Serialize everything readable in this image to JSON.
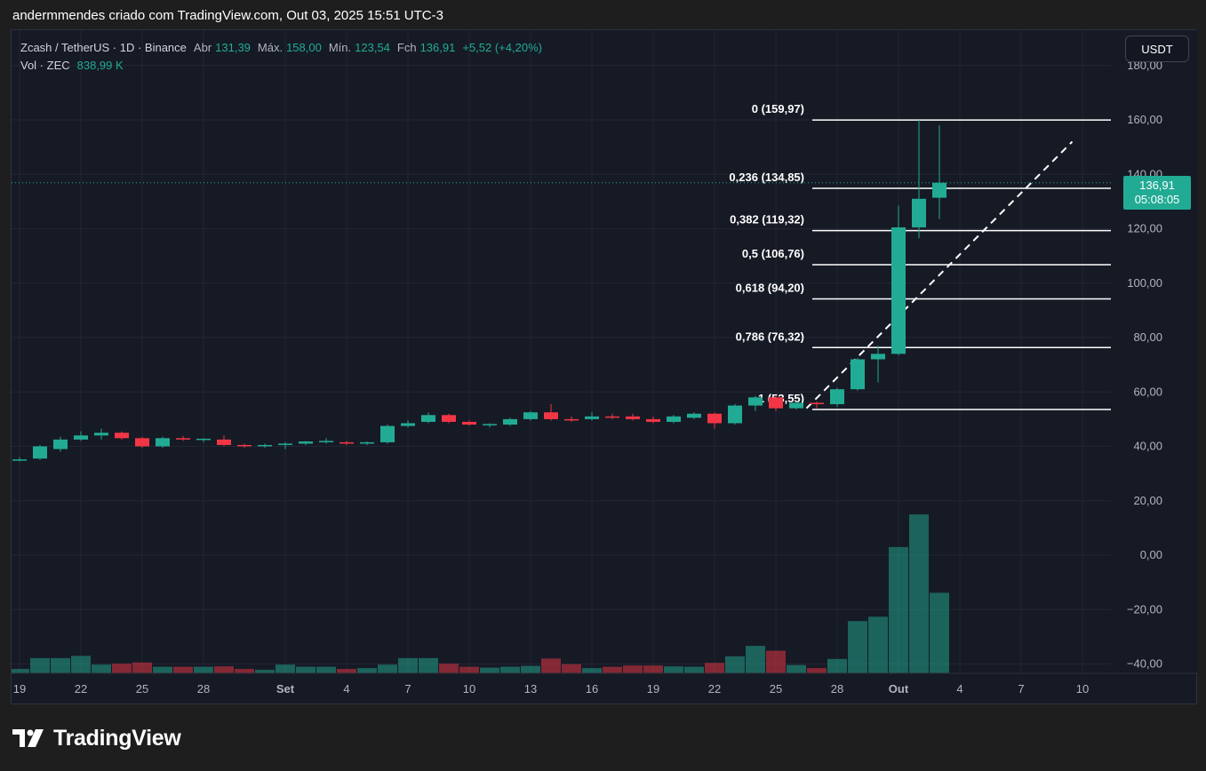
{
  "header": {
    "snapshot_text": "andermmendes criado com TradingView.com, Out 03, 2025 15:51 UTC-3"
  },
  "legend": {
    "symbol": "Zcash / TetherUS · 1D · Binance",
    "open_label": "Abr",
    "open": "131,39",
    "high_label": "Máx.",
    "high": "158,00",
    "low_label": "Mín.",
    "low": "123,54",
    "close_label": "Fch",
    "close": "136,91",
    "change": "+5,52 (+4,20%)",
    "vol_label": "Vol · ZEC",
    "vol_value": "838,99 K"
  },
  "currency_button": "USDT",
  "price_badge": {
    "price": "136,91",
    "countdown": "05:08:05"
  },
  "footer": {
    "logo_text": "TradingView"
  },
  "colors": {
    "up": "#22ab94",
    "down": "#f23645",
    "up_volume": "#22ab9480",
    "down_volume": "#f2364580",
    "fib_line": "#ffffff",
    "background": "#161a25"
  },
  "chart_data": {
    "type": "candlestick",
    "title": "Zcash / TetherUS · 1D · Binance",
    "ylim": [
      -45,
      185
    ],
    "y_ticks": [
      {
        "v": 180,
        "label": "180,00"
      },
      {
        "v": 160,
        "label": "160,00"
      },
      {
        "v": 140,
        "label": "140,00"
      },
      {
        "v": 120,
        "label": "120,00"
      },
      {
        "v": 100,
        "label": "100,00"
      },
      {
        "v": 80,
        "label": "80,00"
      },
      {
        "v": 60,
        "label": "60,00"
      },
      {
        "v": 40,
        "label": "40,00"
      },
      {
        "v": 20,
        "label": "20,00"
      },
      {
        "v": 0,
        "label": "0,00"
      },
      {
        "v": -20,
        "label": "−20,00"
      },
      {
        "v": -40,
        "label": "−40,00"
      }
    ],
    "x_ticks": [
      {
        "i": 0,
        "label": "19"
      },
      {
        "i": 3,
        "label": "22"
      },
      {
        "i": 6,
        "label": "25"
      },
      {
        "i": 9,
        "label": "28"
      },
      {
        "i": 13,
        "label": "Set"
      },
      {
        "i": 16,
        "label": "4"
      },
      {
        "i": 19,
        "label": "7"
      },
      {
        "i": 22,
        "label": "10"
      },
      {
        "i": 25,
        "label": "13"
      },
      {
        "i": 28,
        "label": "16"
      },
      {
        "i": 31,
        "label": "19"
      },
      {
        "i": 34,
        "label": "22"
      },
      {
        "i": 37,
        "label": "25"
      },
      {
        "i": 40,
        "label": "28"
      },
      {
        "i": 43,
        "label": "Out"
      },
      {
        "i": 46,
        "label": "4"
      },
      {
        "i": 49,
        "label": "7"
      },
      {
        "i": 52,
        "label": "10"
      }
    ],
    "candles": [
      {
        "o": 35.0,
        "h": 36.0,
        "l": 34.5,
        "c": 35.2
      },
      {
        "o": 35.5,
        "h": 40.5,
        "l": 35.0,
        "c": 40.0
      },
      {
        "o": 39.0,
        "h": 43.5,
        "l": 38.0,
        "c": 42.5
      },
      {
        "o": 42.5,
        "h": 45.5,
        "l": 42.0,
        "c": 44.0
      },
      {
        "o": 44.0,
        "h": 46.5,
        "l": 42.5,
        "c": 45.0
      },
      {
        "o": 45.0,
        "h": 45.5,
        "l": 42.5,
        "c": 43.0
      },
      {
        "o": 43.0,
        "h": 43.5,
        "l": 39.5,
        "c": 40.0
      },
      {
        "o": 40.0,
        "h": 43.5,
        "l": 39.5,
        "c": 43.0
      },
      {
        "o": 43.0,
        "h": 43.8,
        "l": 42.0,
        "c": 42.5
      },
      {
        "o": 42.5,
        "h": 43.0,
        "l": 41.5,
        "c": 42.8
      },
      {
        "o": 42.5,
        "h": 44.0,
        "l": 40.0,
        "c": 40.5
      },
      {
        "o": 40.5,
        "h": 41.0,
        "l": 39.5,
        "c": 40.2
      },
      {
        "o": 40.0,
        "h": 41.0,
        "l": 39.5,
        "c": 40.5
      },
      {
        "o": 40.5,
        "h": 41.5,
        "l": 39.0,
        "c": 41.0
      },
      {
        "o": 41.0,
        "h": 42.0,
        "l": 40.5,
        "c": 41.8
      },
      {
        "o": 41.5,
        "h": 43.0,
        "l": 41.0,
        "c": 42.0
      },
      {
        "o": 41.5,
        "h": 42.0,
        "l": 40.5,
        "c": 41.0
      },
      {
        "o": 41.0,
        "h": 41.8,
        "l": 40.5,
        "c": 41.5
      },
      {
        "o": 41.5,
        "h": 48.0,
        "l": 41.0,
        "c": 47.5
      },
      {
        "o": 47.5,
        "h": 49.5,
        "l": 47.0,
        "c": 48.5
      },
      {
        "o": 49.0,
        "h": 52.5,
        "l": 48.5,
        "c": 51.5
      },
      {
        "o": 51.5,
        "h": 52.0,
        "l": 48.5,
        "c": 49.0
      },
      {
        "o": 49.0,
        "h": 49.5,
        "l": 47.5,
        "c": 48.0
      },
      {
        "o": 48.0,
        "h": 48.5,
        "l": 47.0,
        "c": 48.2
      },
      {
        "o": 48.0,
        "h": 50.5,
        "l": 47.5,
        "c": 50.0
      },
      {
        "o": 50.0,
        "h": 53.0,
        "l": 49.5,
        "c": 52.5
      },
      {
        "o": 52.5,
        "h": 55.5,
        "l": 49.5,
        "c": 50.0
      },
      {
        "o": 50.0,
        "h": 51.0,
        "l": 49.0,
        "c": 49.5
      },
      {
        "o": 50.0,
        "h": 52.5,
        "l": 49.5,
        "c": 51.0
      },
      {
        "o": 51.0,
        "h": 52.0,
        "l": 50.0,
        "c": 50.8
      },
      {
        "o": 51.0,
        "h": 52.0,
        "l": 49.5,
        "c": 50.0
      },
      {
        "o": 50.0,
        "h": 51.0,
        "l": 48.5,
        "c": 49.0
      },
      {
        "o": 49.0,
        "h": 51.5,
        "l": 48.5,
        "c": 51.0
      },
      {
        "o": 50.5,
        "h": 52.5,
        "l": 50.0,
        "c": 52.0
      },
      {
        "o": 52.0,
        "h": 52.5,
        "l": 46.5,
        "c": 48.5
      },
      {
        "o": 48.5,
        "h": 55.5,
        "l": 48.0,
        "c": 55.0
      },
      {
        "o": 55.0,
        "h": 58.5,
        "l": 53.0,
        "c": 58.0
      },
      {
        "o": 58.0,
        "h": 58.5,
        "l": 53.0,
        "c": 54.0
      },
      {
        "o": 54.0,
        "h": 56.5,
        "l": 53.5,
        "c": 56.0
      },
      {
        "o": 56.0,
        "h": 56.5,
        "l": 54.0,
        "c": 55.5
      },
      {
        "o": 55.5,
        "h": 61.5,
        "l": 54.5,
        "c": 61.0
      },
      {
        "o": 61.0,
        "h": 72.5,
        "l": 60.5,
        "c": 72.0
      },
      {
        "o": 72.0,
        "h": 77.0,
        "l": 63.5,
        "c": 74.0
      },
      {
        "o": 74.0,
        "h": 128.5,
        "l": 73.5,
        "c": 120.5
      },
      {
        "o": 120.5,
        "h": 159.97,
        "l": 116.5,
        "c": 131.0
      },
      {
        "o": 131.39,
        "h": 158.0,
        "l": 123.54,
        "c": 136.91
      }
    ],
    "volume": {
      "description": "Volume shown as relative bar heights on the same panel (ZEC)",
      "values": [
        1.0,
        3.5,
        3.5,
        4.0,
        2.0,
        2.2,
        2.5,
        1.5,
        1.5,
        1.5,
        1.6,
        1.0,
        0.8,
        2.0,
        1.5,
        1.5,
        1.0,
        1.2,
        2.0,
        3.5,
        3.5,
        2.2,
        1.5,
        1.3,
        1.5,
        1.7,
        3.4,
        2.1,
        1.2,
        1.5,
        1.8,
        1.8,
        1.6,
        1.5,
        2.4,
        3.9,
        6.3,
        5.2,
        1.9,
        1.2,
        3.3,
        12.0,
        13.0,
        29.0,
        36.5,
        18.5
      ],
      "unit": "relative"
    },
    "fib_retracement": [
      {
        "level": "0",
        "price": 159.97,
        "label": "0 (159,97)"
      },
      {
        "level": "0.236",
        "price": 134.85,
        "label": "0,236 (134,85)"
      },
      {
        "level": "0.382",
        "price": 119.32,
        "label": "0,382 (119,32)"
      },
      {
        "level": "0.5",
        "price": 106.76,
        "label": "0,5 (106,76)"
      },
      {
        "level": "0.618",
        "price": 94.2,
        "label": "0,618 (94,20)"
      },
      {
        "level": "0.786",
        "price": 76.32,
        "label": "0,786 (76,32)"
      },
      {
        "level": "1",
        "price": 53.55,
        "label": "1 (53,55)"
      }
    ],
    "trend_line": {
      "from": {
        "i": 38.5,
        "price": 54
      },
      "to": {
        "i": 51.5,
        "price": 152
      }
    },
    "last_price_line": 136.91
  }
}
